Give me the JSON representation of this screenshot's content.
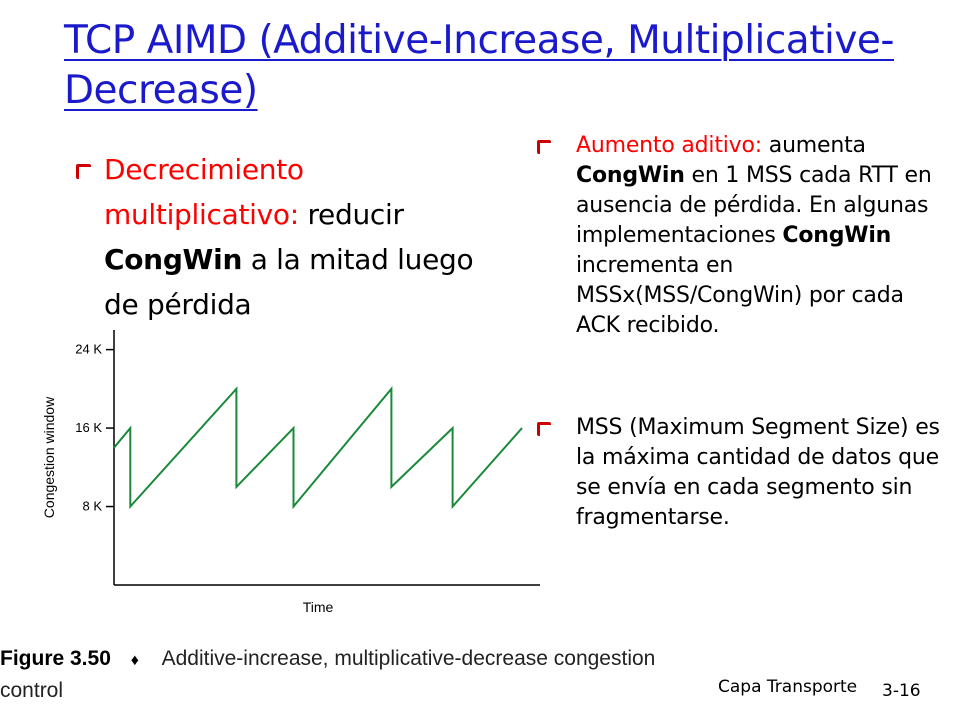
{
  "slide": {
    "title": "TCP AIMD (Additive-Increase, Multiplicative-Decrease)",
    "left_bullet": {
      "red_text": "Decrecimiento multiplicativo:",
      "text_before": "reducir",
      "bold": "CongWin",
      "text_after": "a la mitad luego de pérdida"
    },
    "right_bullets": [
      {
        "red_text": "Aumento aditivo:",
        "t1": "aumenta",
        "b1": "CongWin",
        "t2": "en 1 MSS cada RTT en ausencia de pérdida. En algunas implementaciones",
        "b2": "CongWin",
        "t3": "incrementa en MSSx(MSS/CongWin) por cada ACK recibido."
      },
      {
        "text": "MSS (Maximum Segment Size) es la máxima cantidad de datos que se envía en cada segmento sin fragmentarse."
      }
    ],
    "caption": {
      "figure": "Figure 3.50",
      "separator": "♦",
      "text": "Additive-increase, multiplicative-decrease congestion control"
    },
    "footer": {
      "label": "Capa Transporte",
      "page": "3-16"
    }
  },
  "chart_data": {
    "type": "line",
    "xlabel": "Time",
    "ylabel": "Congestion window",
    "yticks": [
      "8 K",
      "16 K",
      "24 K"
    ],
    "ytick_values": [
      8,
      16,
      24
    ],
    "ylim": [
      0,
      26
    ],
    "xlim": [
      0,
      100
    ],
    "grid": false,
    "series": [
      {
        "x": [
          0,
          4,
          4,
          30,
          30,
          44,
          44,
          68,
          68,
          83,
          83,
          100
        ],
        "y": [
          14,
          16,
          8,
          20,
          10,
          16,
          8,
          20,
          10,
          16,
          8,
          16
        ]
      }
    ]
  }
}
